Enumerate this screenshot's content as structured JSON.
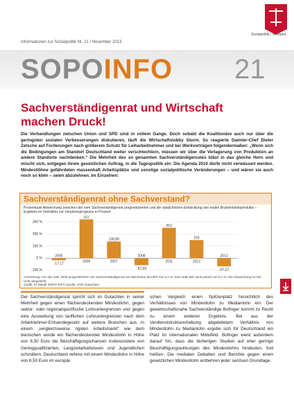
{
  "header": {
    "department": "Sozialpolitik",
    "unit": "Vorstand",
    "issue_line": "Informationen zur Sozialpolitik Nr. 21 / November 2013"
  },
  "masthead": {
    "sopo": "SOPO",
    "info": "INFO",
    "number": "21"
  },
  "article": {
    "headline": "Sachverständigenrat und Wirtschaft machen Druck!",
    "intro": "Die Verhandlungen zwischen Union und SPD sind in vollem Gange. Doch sobald die Koalitionäre auch nur über die geringsten sozialen Verbesserungen diskutieren, läuft die Wirtschaftslobby Sturm. So reagierte Daimler-Chef Dieter Zetsche auf Forderungen nach größerem Schutz für Leiharbeitnehmer und bei Werkverträgen folgendermaßen: „Wenn sich die Bedingungen am Standort Deutschland weiter verschlechtern, müssen wir über die Verlagerung von Produktion an andere Standorte nachdenken.“ Die Mehrheit des so genannten Sachverständigenrates bläst in das gleiche Horn und mischt sich, entgegen ihrem gesetzlichen Auftrag, in die Tagespolitik ein: Die Agenda 2010 dürfe nicht verwässert werden. Mindestlöhne gefährdeten massenhaft Arbeitsplätze und sonstige sozialpolitische Veränderungen – und wären sie auch noch so klein – seien abzulehnen. Im Einzelnen:",
    "body_left": "Der Sachverständigenrat spricht sich im Gutachten in seiner Mehrheit gegen einen flächendeckenden Mindestlohn, gegen sektor- oder regionalspezifische Lohnuntergrenzen und gegen eine Ausweitung von tariflichen Lohnuntergrenzen nach dem Arbeitnehmer-Entsendegesetz auf weitere Branchen aus. In einem „vergleichsweise rigiden Arbeitsmarkt“ wie dem deutschen würde ein flächendeckender Mindestlohn in Höhe von 8,50 Euro die Beschäftigungschancen insbesondere von Geringqualifizierten, Langzeitarbeitslosen und Jugendlichen schmälern. Deutschland nehme mit einem Mindestlohn in Höhe von 8,50 Euro im europäi-",
    "body_right": "schen Vergleich einen Spitzenplatz hinsichtlich des Verhältnisses von Mindestlohn zu Medianlohn ein. Der gewerkschaftsnahe Sachverständige Bofinger kommt zu Recht zu einem anderen Ergebnis. Bei aus der Verdienststrukturerhebung abgeleitetem Verhältnis von Mindestlohn zu Medianlohn ergebe sich für Deutschland ein Platz im internationalen Mittelfeld. Bofinger weist außerdem darauf hin, dass die bisherigen Studien auf eher geringe Beschäftigungswirkungen des Mindestlohns hindeuten. Soll heißen: Die medialen Debatten und Berichte gegen einen gesetzlichen Mindestlohn entbehren jeder seriösen Grundlage."
  },
  "chart_data": {
    "type": "bar",
    "title": "Sachverständigenrat ohne Sachverstand?",
    "subtitle": "Prozentuale Abweichung zwischen der vom Sachverständigenrat prognostizierten und der tatsächlichen Entwicklung des realen Bruttoinlandsprodukts – Ergebnis im Verhältnis zur Vorjahresprognose in Prozent",
    "categories": [
      "2005",
      "2006",
      "2007",
      "2008",
      "2011",
      "2012",
      "2013"
    ],
    "values": [
      -17.17,
      322,
      138.8,
      -57.69,
      252,
      150,
      -67.27
    ],
    "value_labels": [
      "-17,17",
      "322",
      "138,80",
      "-57,69",
      "252",
      "150",
      "-67,27"
    ],
    "color": "#d98c2a",
    "ylim": [
      -130,
      330
    ],
    "yticks": [
      {
        "value": 300,
        "label": "300 %"
      },
      {
        "value": 200,
        "label": "200 %"
      },
      {
        "value": 100,
        "label": "100 %"
      },
      {
        "value": 0,
        "label": "0 %"
      },
      {
        "value": -100,
        "label": "-100 %"
      }
    ],
    "grid": true,
    "note": "Anmerkung: Für das Jahr 2009 prognostizierte der Sachverständigenrat ein Wachstum des BIP von 0,1 %. Das reale BIP sank jedoch um 5,1 %. Die Abweichung ist hier nicht dargestellt.",
    "source": "Grafik: IG Metall SOPO INFO   Quelle: SVR Gutachten"
  }
}
